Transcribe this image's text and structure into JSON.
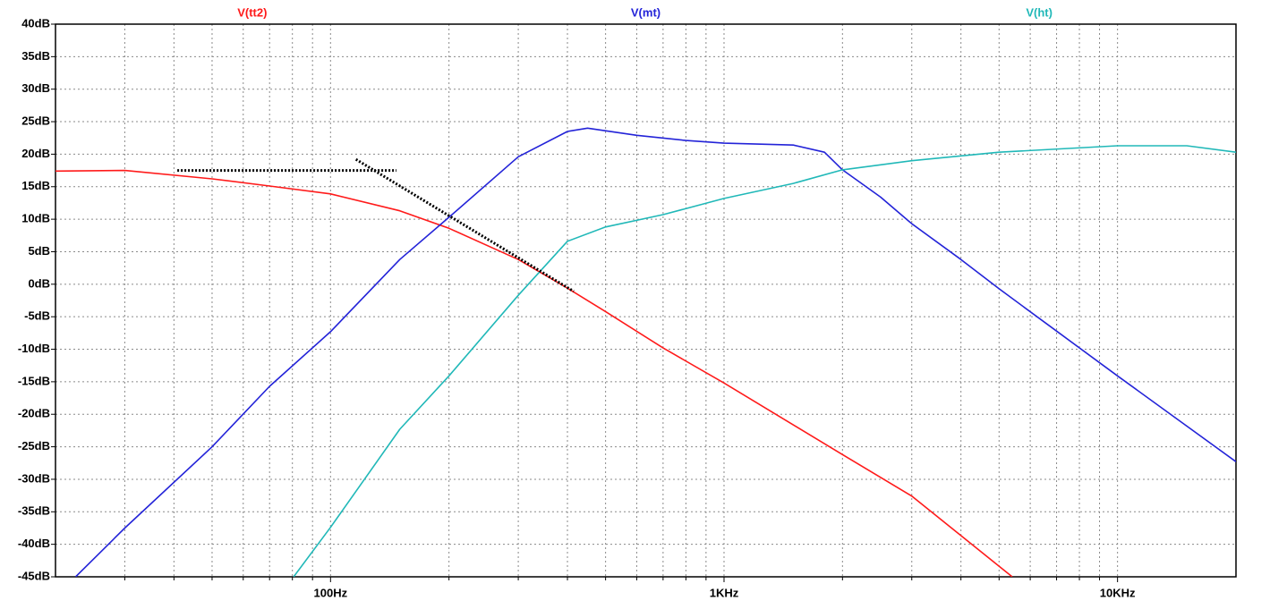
{
  "chart_data": {
    "type": "line",
    "xscale": "log",
    "grid": true,
    "xlim": [
      20,
      20000
    ],
    "ylim": [
      -45,
      40
    ],
    "xticks": [
      {
        "value": 100,
        "label": "100Hz"
      },
      {
        "value": 1000,
        "label": "1KHz"
      },
      {
        "value": 10000,
        "label": "10KHz"
      }
    ],
    "xminor": [
      30,
      40,
      50,
      60,
      70,
      80,
      90,
      200,
      300,
      400,
      500,
      600,
      700,
      800,
      900,
      2000,
      3000,
      4000,
      5000,
      6000,
      7000,
      8000,
      9000
    ],
    "yticks": [
      {
        "value": 40,
        "label": "40dB"
      },
      {
        "value": 35,
        "label": "35dB"
      },
      {
        "value": 30,
        "label": "30dB"
      },
      {
        "value": 25,
        "label": "25dB"
      },
      {
        "value": 20,
        "label": "20dB"
      },
      {
        "value": 15,
        "label": "15dB"
      },
      {
        "value": 10,
        "label": "10dB"
      },
      {
        "value": 5,
        "label": "5dB"
      },
      {
        "value": 0,
        "label": "0dB"
      },
      {
        "value": -5,
        "label": "-5dB"
      },
      {
        "value": -10,
        "label": "-10dB"
      },
      {
        "value": -15,
        "label": "-15dB"
      },
      {
        "value": -20,
        "label": "-20dB"
      },
      {
        "value": -25,
        "label": "-25dB"
      },
      {
        "value": -30,
        "label": "-30dB"
      },
      {
        "value": -35,
        "label": "-35dB"
      },
      {
        "value": -40,
        "label": "-40dB"
      },
      {
        "value": -45,
        "label": "-45dB"
      }
    ],
    "series": [
      {
        "name": "V(tt2)",
        "color": "#ff1a1a",
        "x": [
          20,
          30,
          50,
          70,
          100,
          150,
          200,
          300,
          400,
          500,
          700,
          1000,
          2000,
          3000,
          5400
        ],
        "values": [
          17.4,
          17.5,
          16.2,
          15.1,
          13.9,
          11.3,
          8.6,
          3.8,
          -0.6,
          -4.2,
          -9.8,
          -15.2,
          -26.2,
          -32.6,
          -45
        ]
      },
      {
        "name": "V(mt)",
        "color": "#2323d8",
        "x": [
          22.5,
          30,
          50,
          70,
          100,
          150,
          200,
          300,
          400,
          450,
          600,
          800,
          1000,
          1500,
          1800,
          2000,
          2500,
          3000,
          4000,
          5000,
          7000,
          10000,
          20000
        ],
        "values": [
          -45,
          -37.5,
          -25,
          -15.7,
          -7.3,
          3.8,
          10.3,
          19.6,
          23.5,
          24.0,
          22.9,
          22.1,
          21.7,
          21.4,
          20.3,
          17.6,
          13.4,
          9.3,
          3.8,
          -0.7,
          -7.2,
          -14.1,
          -27.3
        ]
      },
      {
        "name": "V(ht)",
        "color": "#20b8b8",
        "x": [
          80.6,
          100,
          150,
          200,
          300,
          400,
          500,
          700,
          1000,
          1500,
          2000,
          3000,
          5000,
          10000,
          15000,
          20000
        ],
        "values": [
          -45,
          -37.4,
          -22.3,
          -14.1,
          -1.7,
          6.6,
          8.8,
          10.7,
          13.2,
          15.5,
          17.6,
          19.0,
          20.3,
          21.3,
          21.3,
          20.3
        ]
      }
    ],
    "lines": [
      {
        "color": "#000000",
        "x": [
          40.8,
          147
        ],
        "values": [
          17.5,
          17.5
        ]
      },
      {
        "color": "#000000",
        "x": [
          116,
          415
        ],
        "values": [
          19.2,
          -1.1
        ]
      }
    ]
  }
}
